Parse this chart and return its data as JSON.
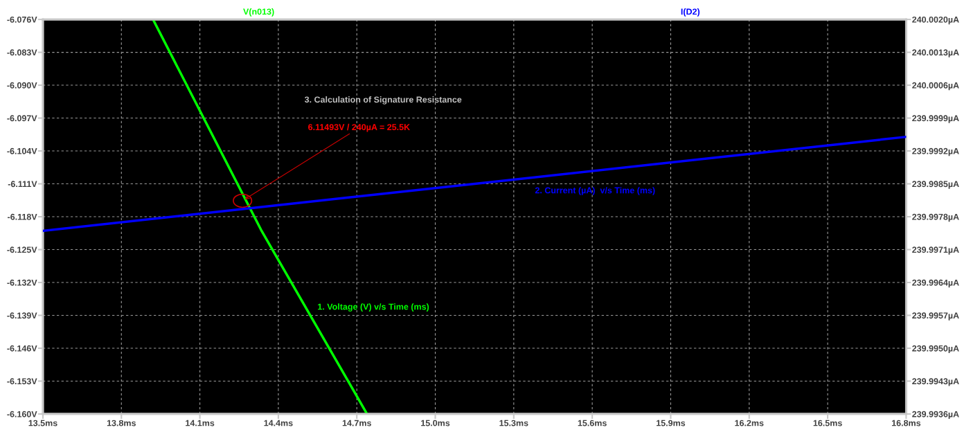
{
  "chart_data": {
    "type": "line",
    "series": [
      {
        "name": "V(n013)",
        "color": "#00ff00",
        "x": [
          13.921,
          14.334,
          14.739
        ],
        "values": [
          -6.076,
          -6.1208,
          -6.16
        ]
      },
      {
        "name": "I(D2)",
        "color": "#0000ff",
        "axis": "y2",
        "x": [
          13.5,
          16.8
        ],
        "values": [
          239.9975,
          239.9995
        ]
      }
    ],
    "xlim": [
      13.5,
      16.8
    ],
    "xticks": [
      {
        "value": 13.5,
        "label": "13.5ms"
      },
      {
        "value": 13.8,
        "label": "13.8ms"
      },
      {
        "value": 14.1,
        "label": "14.1ms"
      },
      {
        "value": 14.4,
        "label": "14.4ms"
      },
      {
        "value": 14.7,
        "label": "14.7ms"
      },
      {
        "value": 15.0,
        "label": "15.0ms"
      },
      {
        "value": 15.3,
        "label": "15.3ms"
      },
      {
        "value": 15.6,
        "label": "15.6ms"
      },
      {
        "value": 15.9,
        "label": "15.9ms"
      },
      {
        "value": 16.2,
        "label": "16.2ms"
      },
      {
        "value": 16.5,
        "label": "16.5ms"
      },
      {
        "value": 16.8,
        "label": "16.8ms"
      }
    ],
    "ylim": [
      -6.16,
      -6.076
    ],
    "yticks": [
      {
        "value": -6.076,
        "label": "-6.076V"
      },
      {
        "value": -6.083,
        "label": "-6.083V"
      },
      {
        "value": -6.09,
        "label": "-6.090V"
      },
      {
        "value": -6.097,
        "label": "-6.097V"
      },
      {
        "value": -6.104,
        "label": "-6.104V"
      },
      {
        "value": -6.111,
        "label": "-6.111V"
      },
      {
        "value": -6.118,
        "label": "-6.118V"
      },
      {
        "value": -6.125,
        "label": "-6.125V"
      },
      {
        "value": -6.132,
        "label": "-6.132V"
      },
      {
        "value": -6.139,
        "label": "-6.139V"
      },
      {
        "value": -6.146,
        "label": "-6.146V"
      },
      {
        "value": -6.153,
        "label": "-6.153V"
      },
      {
        "value": -6.16,
        "label": "-6.160V"
      }
    ],
    "y2lim": [
      239.9936,
      240.002
    ],
    "y2ticks": [
      {
        "value": 240.002,
        "label": "240.0020µA"
      },
      {
        "value": 240.0013,
        "label": "240.0013µA"
      },
      {
        "value": 240.0006,
        "label": "240.0006µA"
      },
      {
        "value": 239.9999,
        "label": "239.9999µA"
      },
      {
        "value": 239.9992,
        "label": "239.9992µA"
      },
      {
        "value": 239.9985,
        "label": "239.9985µA"
      },
      {
        "value": 239.9978,
        "label": "239.9978µA"
      },
      {
        "value": 239.9971,
        "label": "239.9971µA"
      },
      {
        "value": 239.9964,
        "label": "239.9964µA"
      },
      {
        "value": 239.9957,
        "label": "239.9957µA"
      },
      {
        "value": 239.995,
        "label": "239.9950µA"
      },
      {
        "value": 239.9943,
        "label": "239.9943µA"
      },
      {
        "value": 239.9936,
        "label": "239.9936µA"
      }
    ],
    "grid": true,
    "legend": false,
    "line_style": "solid",
    "annotations": [
      "3. Calculation of Signature Resistance",
      {
        "text": "6.11493V / 240µA = 25.5K",
        "x": 14.263,
        "y": -6.1146
      },
      "1. Voltage (V) v/s Time (ms)",
      "2. Current (µA)  v/s Time (ms)"
    ]
  }
}
